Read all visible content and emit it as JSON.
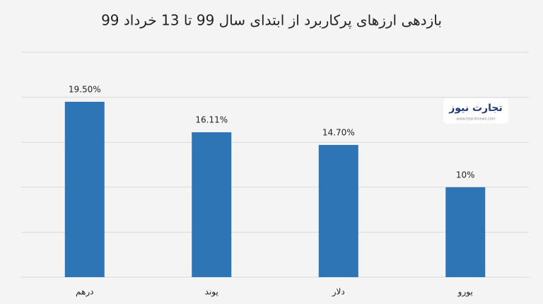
{
  "chart_data": {
    "type": "bar",
    "title": "بازدهی ارزهای پرکاربرد از ابتدای سال 99 تا 13 خرداد 99",
    "categories": [
      "درهم",
      "پوند",
      "دلار",
      "یورو"
    ],
    "values": [
      19.5,
      16.11,
      14.7,
      10
    ],
    "value_labels": [
      "19.50%",
      "16.11%",
      "14.70%",
      "10%"
    ],
    "color": "#2e75b6",
    "ylim": [
      0,
      25
    ],
    "yticks": [
      0,
      5,
      10,
      15,
      20,
      25
    ],
    "grid": true
  },
  "logo": {
    "name": "تجارت نیوز",
    "url": "www.tejaratnews.com"
  }
}
